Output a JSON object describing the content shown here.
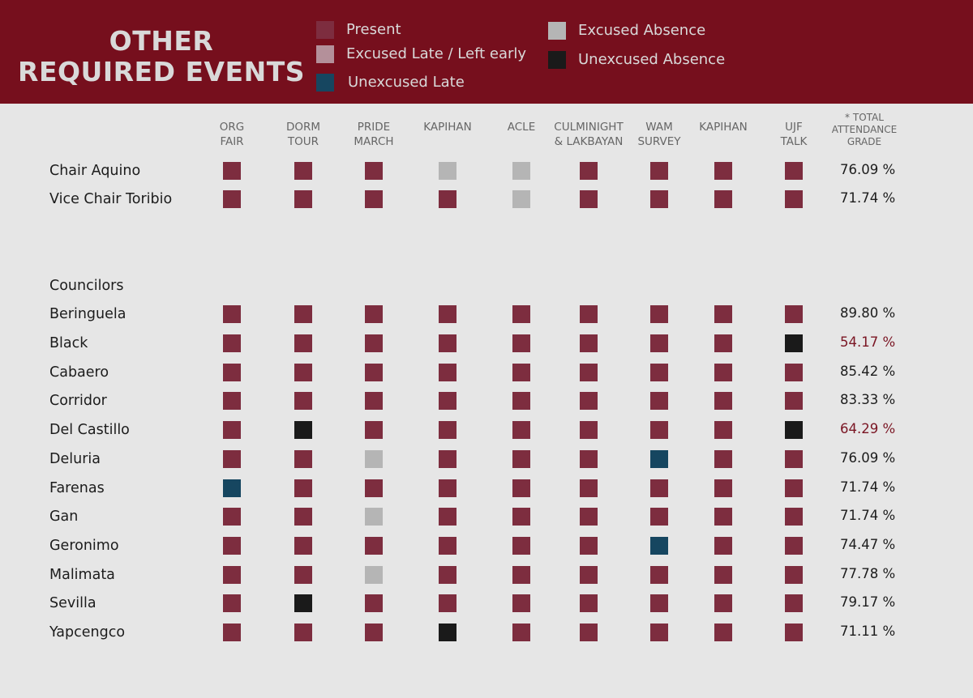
{
  "title": {
    "line1": "OTHER",
    "line2": "REQUIRED EVENTS"
  },
  "colors": {
    "header_bg": "#760f1d",
    "present": "#7d2d3f",
    "excused_late": "#b4909a",
    "unexcused_late": "#164660",
    "excused_absence": "#b5b5b5",
    "unexcused_absence": "#1a1a1a",
    "low_grade_text": "#7a1523"
  },
  "legend": [
    {
      "key": "present",
      "label": "Present"
    },
    {
      "key": "excused_late",
      "label": "Excused Late / Left early"
    },
    {
      "key": "unexcused_late",
      "label": "Unexcused Late"
    },
    {
      "key": "excused_absence",
      "label": "Excused Absence"
    },
    {
      "key": "unexcused_absence",
      "label": "Unexcused Absence"
    }
  ],
  "columns": [
    "ORG\nFAIR",
    "DORM\nTOUR",
    "PRIDE\nMARCH",
    "KAPIHAN",
    "ACLE",
    "CULMINIGHT\n& LAKBAYAN",
    "WAM\nSURVEY",
    "KAPIHAN",
    "UJF\nTALK"
  ],
  "grade_header": "* TOTAL\nATTENDANCE\nGRADE",
  "officers": [
    {
      "name": "Chair Aquino",
      "cells": [
        "P",
        "P",
        "P",
        "EA",
        "EA",
        "P",
        "P",
        "P",
        "P"
      ],
      "grade": "76.09 %",
      "low": false
    },
    {
      "name": "Vice Chair Toribio",
      "cells": [
        "P",
        "P",
        "P",
        "P",
        "EA",
        "P",
        "P",
        "P",
        "P"
      ],
      "grade": "71.74 %",
      "low": false
    }
  ],
  "section_label": "Councilors",
  "councilors": [
    {
      "name": "Beringuela",
      "cells": [
        "P",
        "P",
        "P",
        "P",
        "P",
        "P",
        "P",
        "P",
        "P"
      ],
      "grade": "89.80 %",
      "low": false
    },
    {
      "name": "Black",
      "cells": [
        "P",
        "P",
        "P",
        "P",
        "P",
        "P",
        "P",
        "P",
        "UA"
      ],
      "grade": "54.17 %",
      "low": true
    },
    {
      "name": "Cabaero",
      "cells": [
        "P",
        "P",
        "P",
        "P",
        "P",
        "P",
        "P",
        "P",
        "P"
      ],
      "grade": "85.42 %",
      "low": false
    },
    {
      "name": "Corridor",
      "cells": [
        "P",
        "P",
        "P",
        "P",
        "P",
        "P",
        "P",
        "P",
        "P"
      ],
      "grade": "83.33 %",
      "low": false
    },
    {
      "name": "Del Castillo",
      "cells": [
        "P",
        "UA",
        "P",
        "P",
        "P",
        "P",
        "P",
        "P",
        "UA"
      ],
      "grade": "64.29 %",
      "low": true
    },
    {
      "name": "Deluria",
      "cells": [
        "P",
        "P",
        "EA",
        "P",
        "P",
        "P",
        "UL",
        "P",
        "P"
      ],
      "grade": "76.09 %",
      "low": false
    },
    {
      "name": "Farenas",
      "cells": [
        "UL",
        "P",
        "P",
        "P",
        "P",
        "P",
        "P",
        "P",
        "P"
      ],
      "grade": "71.74 %",
      "low": false
    },
    {
      "name": "Gan",
      "cells": [
        "P",
        "P",
        "EA",
        "P",
        "P",
        "P",
        "P",
        "P",
        "P"
      ],
      "grade": "71.74 %",
      "low": false
    },
    {
      "name": "Geronimo",
      "cells": [
        "P",
        "P",
        "P",
        "P",
        "P",
        "P",
        "UL",
        "P",
        "P"
      ],
      "grade": "74.47 %",
      "low": false
    },
    {
      "name": "Malimata",
      "cells": [
        "P",
        "P",
        "EA",
        "P",
        "P",
        "P",
        "P",
        "P",
        "P"
      ],
      "grade": "77.78 %",
      "low": false
    },
    {
      "name": "Sevilla",
      "cells": [
        "P",
        "UA",
        "P",
        "P",
        "P",
        "P",
        "P",
        "P",
        "P"
      ],
      "grade": "79.17 %",
      "low": false
    },
    {
      "name": "Yapcengco",
      "cells": [
        "P",
        "P",
        "P",
        "UA",
        "P",
        "P",
        "P",
        "P",
        "P"
      ],
      "grade": "71.11 %",
      "low": false
    }
  ]
}
